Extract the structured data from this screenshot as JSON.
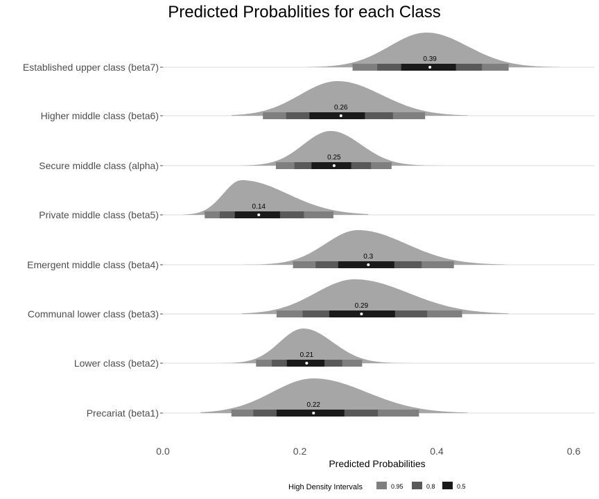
{
  "chart_data": {
    "type": "halfeye",
    "title": "Predicted Probablities for each Class",
    "xlabel": "Predicted Probabilities",
    "ylabel": "",
    "xlim": [
      -0.03,
      0.63
    ],
    "xticks": [
      0.0,
      0.2,
      0.4,
      0.6
    ],
    "xtick_labels": [
      "0.0",
      "0.2",
      "0.4",
      "0.6"
    ],
    "grid": "horizontal",
    "legend": {
      "title": "High Density Intervals",
      "position": "bottom",
      "entries": [
        {
          "label": "0.95",
          "color": "#7f7f7f"
        },
        {
          "label": "0.8",
          "color": "#595959"
        },
        {
          "label": "0.5",
          "color": "#1a1a1a"
        }
      ]
    },
    "colors": {
      "density": "#a6a6a6",
      "ci95": "#7f7f7f",
      "ci80": "#595959",
      "ci50": "#1a1a1a",
      "point": "#ffffff",
      "grid": "#d9d9d9"
    },
    "categories": [
      {
        "label": "Established upper class (beta7)",
        "median": 0.39,
        "median_label": "0.39",
        "ci50": [
          0.348,
          0.428
        ],
        "ci80": [
          0.313,
          0.466
        ],
        "ci95": [
          0.277,
          0.505
        ],
        "range": [
          0.212,
          0.58
        ],
        "mode": 0.385
      },
      {
        "label": "Higher middle class (beta6)",
        "median": 0.26,
        "median_label": "0.26",
        "ci50": [
          0.214,
          0.295
        ],
        "ci80": [
          0.18,
          0.336
        ],
        "ci95": [
          0.146,
          0.383
        ],
        "range": [
          0.1,
          0.445
        ],
        "mode": 0.255
      },
      {
        "label": "Secure middle class (alpha)",
        "median": 0.25,
        "median_label": "0.25",
        "ci50": [
          0.217,
          0.275
        ],
        "ci80": [
          0.192,
          0.304
        ],
        "ci95": [
          0.165,
          0.334
        ],
        "range": [
          0.115,
          0.41
        ],
        "mode": 0.245
      },
      {
        "label": "Private middle class (beta5)",
        "median": 0.14,
        "median_label": "0.14",
        "ci50": [
          0.105,
          0.171
        ],
        "ci80": [
          0.083,
          0.206
        ],
        "ci95": [
          0.061,
          0.249
        ],
        "range": [
          0.03,
          0.3
        ],
        "mode": 0.115
      },
      {
        "label": "Emergent middle class (beta4)",
        "median": 0.3,
        "median_label": "0.3",
        "ci50": [
          0.256,
          0.338
        ],
        "ci80": [
          0.223,
          0.378
        ],
        "ci95": [
          0.19,
          0.425
        ],
        "range": [
          0.12,
          0.5
        ],
        "mode": 0.285
      },
      {
        "label": "Communal lower class (beta3)",
        "median": 0.29,
        "median_label": "0.29",
        "ci50": [
          0.243,
          0.339
        ],
        "ci80": [
          0.204,
          0.386
        ],
        "ci95": [
          0.166,
          0.437
        ],
        "range": [
          0.115,
          0.505
        ],
        "mode": 0.28
      },
      {
        "label": "Lower class (beta2)",
        "median": 0.21,
        "median_label": "0.21",
        "ci50": [
          0.181,
          0.236
        ],
        "ci80": [
          0.159,
          0.262
        ],
        "ci95": [
          0.136,
          0.291
        ],
        "range": [
          0.085,
          0.36
        ],
        "mode": 0.205
      },
      {
        "label": "Precariat (beta1)",
        "median": 0.22,
        "median_label": "0.22",
        "ci50": [
          0.166,
          0.265
        ],
        "ci80": [
          0.132,
          0.314
        ],
        "ci95": [
          0.1,
          0.374
        ],
        "range": [
          0.055,
          0.445
        ],
        "mode": 0.22
      }
    ]
  }
}
